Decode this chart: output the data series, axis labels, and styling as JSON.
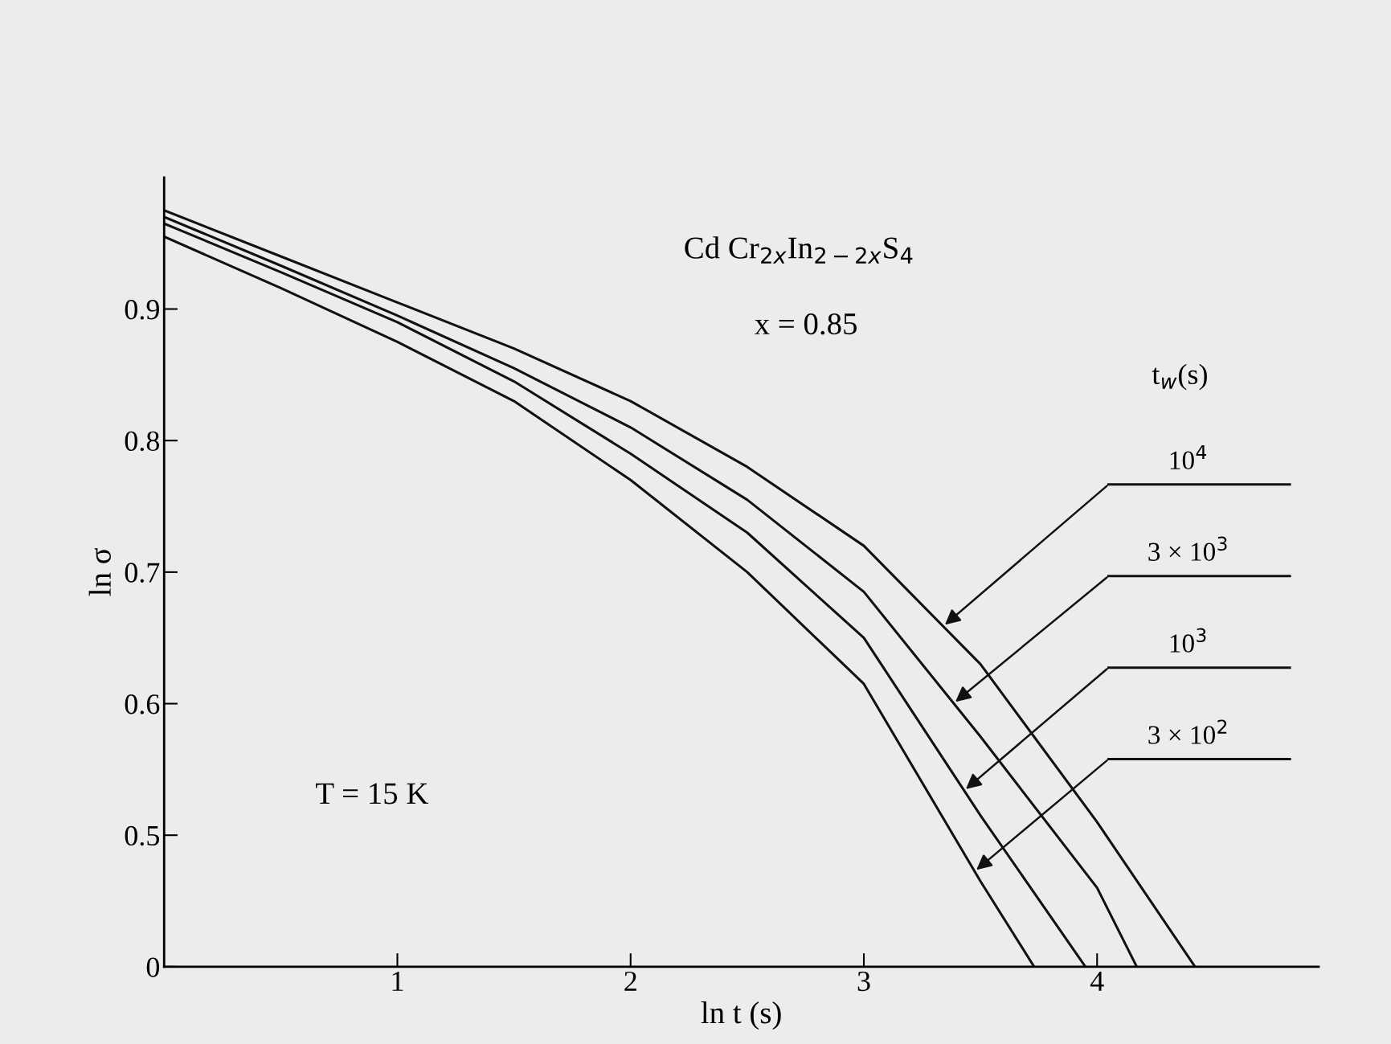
{
  "chart_data": {
    "type": "line",
    "xlabel": "ln t (s)",
    "ylabel": "ln σ",
    "legend_title": "t$_{w}$(s)",
    "xlim": [
      0,
      4.95
    ],
    "ylim": [
      0.4,
      1.0
    ],
    "xticks": [
      1,
      2,
      3,
      4
    ],
    "yticks": [
      {
        "value": 0.4,
        "label": "0"
      },
      0.5,
      0.6,
      0.7,
      0.8,
      0.9
    ],
    "grid": false,
    "legend": "right",
    "marker": "none",
    "line_style": "solid",
    "annotations": [
      "Cd Cr$_{2x}$In$_{2−2x}$S$_{4}$",
      "x = 0.85",
      "T = 15 K"
    ],
    "series": [
      {
        "name": "10$^{4}$",
        "color": "#111111",
        "x": [
          0,
          0.5,
          1,
          1.5,
          2,
          2.5,
          3,
          3.5,
          4,
          4.42
        ],
        "values": [
          0.975,
          0.94,
          0.905,
          0.87,
          0.83,
          0.78,
          0.72,
          0.63,
          0.51,
          0.4
        ]
      },
      {
        "name": "3 × 10$^{3}$",
        "color": "#111111",
        "x": [
          0,
          0.5,
          1,
          1.5,
          2,
          2.5,
          3,
          3.5,
          4,
          4.17
        ],
        "values": [
          0.97,
          0.933,
          0.895,
          0.855,
          0.81,
          0.755,
          0.685,
          0.575,
          0.46,
          0.4
        ]
      },
      {
        "name": "10$^{3}$",
        "color": "#111111",
        "x": [
          0,
          0.5,
          1,
          1.5,
          2,
          2.5,
          3,
          3.5,
          3.95
        ],
        "values": [
          0.965,
          0.928,
          0.89,
          0.845,
          0.79,
          0.73,
          0.65,
          0.515,
          0.4
        ]
      },
      {
        "name": "3 × 10$^{2}$",
        "color": "#111111",
        "x": [
          0,
          0.5,
          1,
          1.5,
          2,
          2.5,
          3,
          3.5,
          3.73
        ],
        "values": [
          0.955,
          0.916,
          0.875,
          0.83,
          0.77,
          0.7,
          0.615,
          0.465,
          0.4
        ]
      }
    ]
  }
}
